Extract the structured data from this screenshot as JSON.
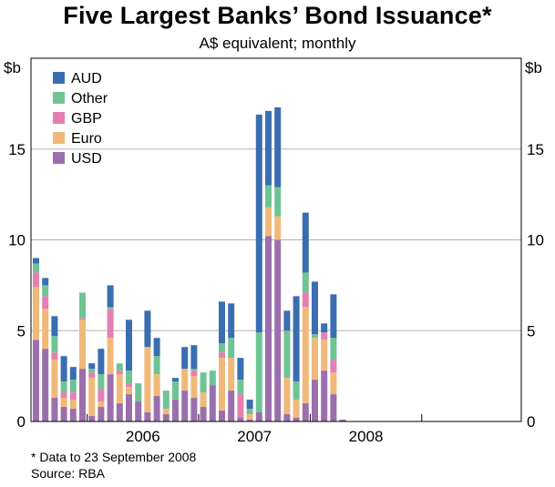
{
  "header": {
    "title": "Five Largest Banks’ Bond Issuance*",
    "subtitle": "A$ equivalent; monthly"
  },
  "axis": {
    "left_unit": "$b",
    "right_unit": "$b",
    "y_ticks": [
      0,
      5,
      10,
      15
    ],
    "x_ticks": [
      "2006",
      "2007",
      "2008"
    ]
  },
  "footnotes": {
    "note": "* Data to 23 September 2008",
    "source": "Source: RBA"
  },
  "colors": {
    "USD": "#9b6fad",
    "Euro": "#f0b97a",
    "GBP": "#e57fb3",
    "Other": "#6fc494",
    "AUD": "#3b6eb0",
    "grid": "#b3b3b3"
  },
  "chart_data": {
    "type": "bar",
    "stacked": true,
    "title": "Five Largest Banks’ Bond Issuance*",
    "subtitle": "A$ equivalent; monthly",
    "xlabel": "",
    "ylabel": "$b",
    "ylim": [
      0,
      20
    ],
    "grid": true,
    "legend_position": "top-left",
    "categories": [
      "2005-07",
      "2005-08",
      "2005-09",
      "2005-10",
      "2005-11",
      "2005-12",
      "2006-01",
      "2006-02",
      "2006-03",
      "2006-04",
      "2006-05",
      "2006-06",
      "2006-07",
      "2006-08",
      "2006-09",
      "2006-10",
      "2006-11",
      "2006-12",
      "2007-01",
      "2007-02",
      "2007-03",
      "2007-04",
      "2007-05",
      "2007-06",
      "2007-07",
      "2007-08",
      "2007-09",
      "2007-10",
      "2007-11",
      "2007-12",
      "2008-01",
      "2008-02",
      "2008-03",
      "2008-04",
      "2008-05",
      "2008-06",
      "2008-07",
      "2008-08",
      "2008-09"
    ],
    "series": [
      {
        "name": "USD",
        "values": [
          4.5,
          4.0,
          1.3,
          0.8,
          0.7,
          2.9,
          0.3,
          0.8,
          2.6,
          1.0,
          1.5,
          1.1,
          0.5,
          1.4,
          0.4,
          1.2,
          1.7,
          1.3,
          0.8,
          2.0,
          0.6,
          1.7,
          0.2,
          0.1,
          0.5,
          10.2,
          10.0,
          0.4,
          0.2,
          1.0,
          2.3,
          2.8,
          1.5,
          0.1,
          0,
          0,
          0,
          0,
          0
        ]
      },
      {
        "name": "Euro",
        "values": [
          2.9,
          2.2,
          2.1,
          0.5,
          0.5,
          2.7,
          2.1,
          0.3,
          2.0,
          1.6,
          0.4,
          0,
          3.6,
          1.2,
          0.3,
          0,
          1.2,
          1.2,
          0.8,
          0,
          2.9,
          1.8,
          0,
          0.3,
          0,
          1.6,
          1.3,
          2.0,
          1.0,
          5.3,
          2.3,
          1.7,
          1.2,
          0,
          0,
          0,
          0,
          0,
          0
        ]
      },
      {
        "name": "GBP",
        "values": [
          0.8,
          0.7,
          0.4,
          0.3,
          0.4,
          0.1,
          0.3,
          0.7,
          1.6,
          0.2,
          0.2,
          0,
          0,
          0,
          0,
          0,
          0,
          0.3,
          0,
          0,
          0.3,
          0,
          1.3,
          0,
          0,
          0,
          0,
          0,
          0,
          0.8,
          0,
          0.4,
          0.7,
          0,
          0,
          0,
          0,
          0,
          0
        ]
      },
      {
        "name": "Other",
        "values": [
          0.5,
          0.6,
          0.9,
          0.6,
          0.7,
          1.4,
          0.2,
          0.8,
          0.1,
          0.4,
          0.7,
          1.0,
          0,
          1.0,
          1.0,
          1.0,
          0,
          0.1,
          1.1,
          0.8,
          0.5,
          1.1,
          0.8,
          0.3,
          4.4,
          1.2,
          1.6,
          2.6,
          1.0,
          1.1,
          0.2,
          0,
          1.2,
          0,
          0,
          0,
          0,
          0,
          0
        ]
      },
      {
        "name": "AUD",
        "values": [
          0.3,
          0.4,
          1.1,
          1.4,
          0.7,
          0,
          0.3,
          1.4,
          1.2,
          0,
          2.8,
          0,
          2.0,
          1.0,
          0,
          0.2,
          1.2,
          1.3,
          0,
          0,
          2.3,
          1.9,
          1.2,
          0.5,
          12.0,
          4.1,
          4.4,
          1.1,
          4.7,
          3.3,
          2.9,
          0.5,
          2.4,
          0,
          0,
          0,
          0,
          0,
          0
        ]
      }
    ]
  }
}
